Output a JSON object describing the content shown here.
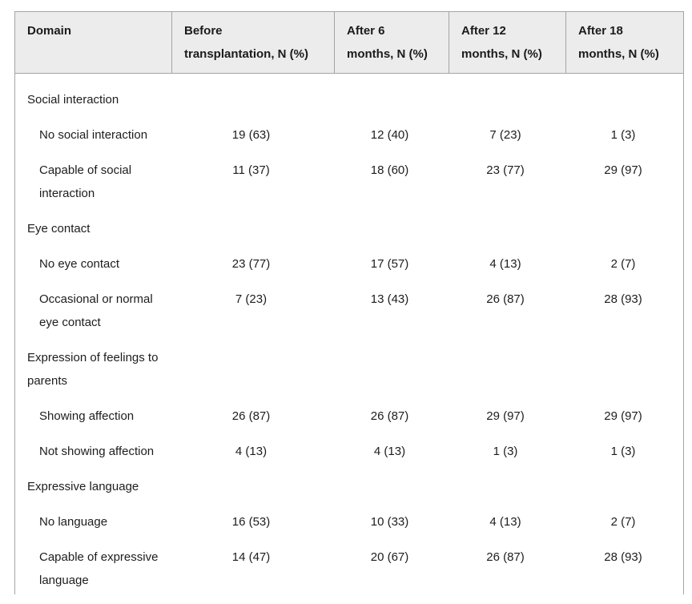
{
  "table": {
    "columns": [
      "Domain",
      "Before\ntransplantation, N (%)",
      "After 6\nmonths, N (%)",
      "After 12\nmonths, N (%)",
      "After 18\nmonths, N (%)"
    ],
    "rows": [
      {
        "type": "section",
        "label": "Social interaction"
      },
      {
        "type": "item",
        "label": "No social interaction",
        "values": [
          "19 (63)",
          "12 (40)",
          "7 (23)",
          "1 (3)"
        ]
      },
      {
        "type": "item",
        "label": "Capable of social\ninteraction",
        "values": [
          "11 (37)",
          "18 (60)",
          "23 (77)",
          "29 (97)"
        ]
      },
      {
        "type": "section",
        "label": "Eye contact"
      },
      {
        "type": "item",
        "label": "No eye contact",
        "values": [
          "23 (77)",
          "17 (57)",
          "4 (13)",
          "2 (7)"
        ]
      },
      {
        "type": "item",
        "label": "Occasional or normal\neye contact",
        "values": [
          "7 (23)",
          "13 (43)",
          "26 (87)",
          "28 (93)"
        ]
      },
      {
        "type": "section",
        "label": "Expression of feelings to\nparents"
      },
      {
        "type": "item",
        "label": "Showing affection",
        "values": [
          "26 (87)",
          "26 (87)",
          "29 (97)",
          "29 (97)"
        ]
      },
      {
        "type": "item",
        "label": "Not showing affection",
        "values": [
          "4 (13)",
          "4 (13)",
          "1 (3)",
          "1 (3)"
        ]
      },
      {
        "type": "section",
        "label": "Expressive language"
      },
      {
        "type": "item",
        "label": "No language",
        "values": [
          "16 (53)",
          "10 (33)",
          "4 (13)",
          "2 (7)"
        ]
      },
      {
        "type": "item",
        "label": "Capable of expressive\nlanguage",
        "values": [
          "14 (47)",
          "20 (67)",
          "26 (87)",
          "28 (93)"
        ]
      }
    ],
    "colors": {
      "header_bg": "#ececec",
      "border": "#a5a5a5",
      "text": "#1d1d1d"
    }
  }
}
